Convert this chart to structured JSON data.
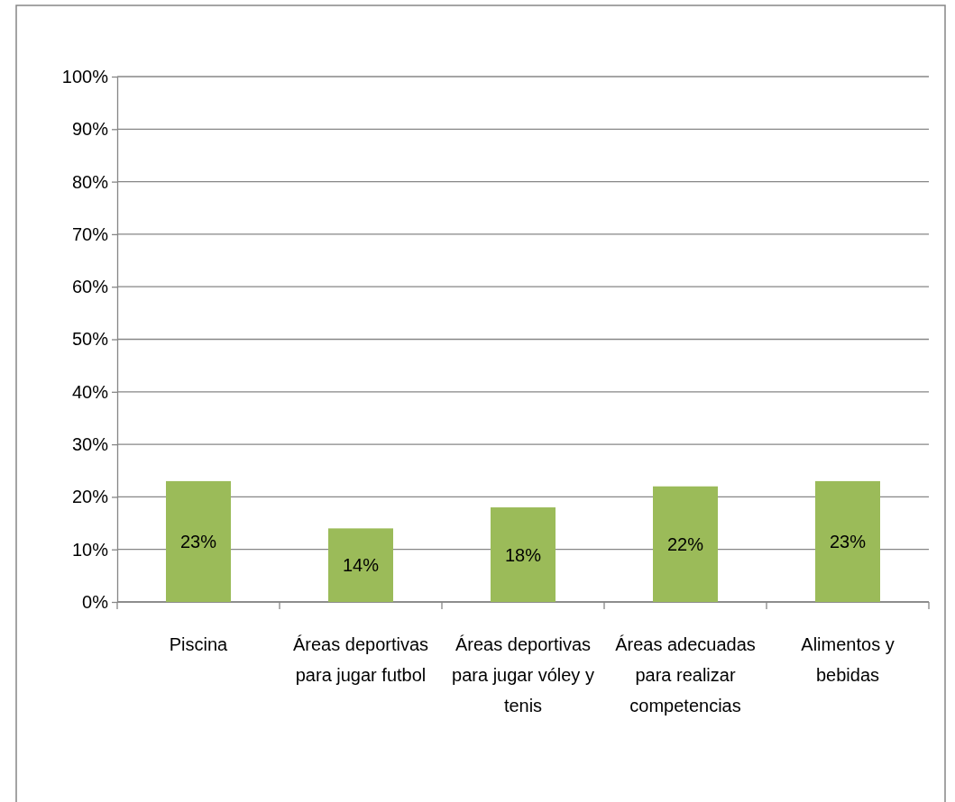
{
  "chart_data": {
    "type": "bar",
    "categories": [
      "Piscina",
      "Áreas deportivas para jugar futbol",
      "Áreas deportivas para jugar vóley y tenis",
      "Áreas adecuadas para realizar competencias",
      "Alimentos y bebidas"
    ],
    "values": [
      23,
      14,
      18,
      22,
      23
    ],
    "value_labels": [
      "23%",
      "14%",
      "18%",
      "22%",
      "23%"
    ],
    "color": "#9bbb59",
    "ylim": [
      0,
      100
    ],
    "yticks": [
      {
        "value": 0,
        "label": "0%"
      },
      {
        "value": 10,
        "label": "10%"
      },
      {
        "value": 20,
        "label": "20%"
      },
      {
        "value": 30,
        "label": "30%"
      },
      {
        "value": 40,
        "label": "40%"
      },
      {
        "value": 50,
        "label": "50%"
      },
      {
        "value": 60,
        "label": "60%"
      },
      {
        "value": 70,
        "label": "70%"
      },
      {
        "value": 80,
        "label": "80%"
      },
      {
        "value": 90,
        "label": "90%"
      },
      {
        "value": 100,
        "label": "100%"
      }
    ],
    "grid": "y"
  }
}
